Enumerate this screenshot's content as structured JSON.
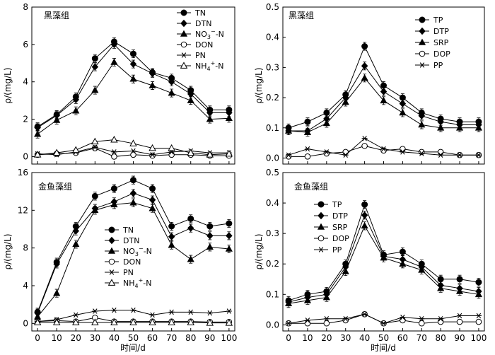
{
  "figure": {
    "xlabel_bottom": "时间/d"
  },
  "chart_data": [
    {
      "type": "line",
      "title": "黑藻组",
      "xlabel": "",
      "ylabel": "ρ/(mg/L)",
      "x": [
        0,
        10,
        20,
        30,
        40,
        50,
        60,
        70,
        80,
        90,
        100
      ],
      "xlim": [
        -3,
        103
      ],
      "ylim": [
        -0.4,
        8
      ],
      "yticks": [
        0,
        2,
        4,
        6,
        8
      ],
      "xticks": [],
      "error_bars": true,
      "legend_position": "top-right",
      "series": [
        {
          "name": "TN",
          "marker": "circle-filled",
          "values": [
            1.6,
            2.25,
            3.2,
            5.25,
            6.15,
            5.5,
            4.5,
            4.2,
            3.55,
            2.5,
            2.5
          ]
        },
        {
          "name": "DTN",
          "marker": "diamond-filled",
          "values": [
            1.55,
            2.2,
            3.05,
            4.8,
            6.0,
            4.95,
            4.45,
            4.0,
            3.35,
            2.35,
            2.35
          ]
        },
        {
          "name": "NO3−-N",
          "marker": "triangle-filled",
          "values": [
            1.2,
            1.95,
            2.45,
            3.55,
            5.05,
            4.15,
            3.8,
            3.4,
            3.0,
            2.0,
            2.05
          ]
        },
        {
          "name": "DON",
          "marker": "circle-open",
          "values": [
            0.1,
            0.15,
            0.2,
            0.45,
            0.0,
            0.1,
            0.05,
            0.1,
            0.1,
            0.05,
            0.05
          ]
        },
        {
          "name": "PN",
          "marker": "asterisk",
          "values": [
            0.15,
            0.1,
            0.25,
            0.5,
            0.25,
            0.3,
            0.1,
            0.25,
            0.3,
            0.2,
            0.2
          ]
        },
        {
          "name": "NH4+-N",
          "marker": "triangle-open",
          "values": [
            0.1,
            0.2,
            0.35,
            0.8,
            0.9,
            0.7,
            0.45,
            0.45,
            0.2,
            0.1,
            0.15
          ]
        }
      ],
      "legend": [
        {
          "pre": "TN"
        },
        {
          "pre": "DTN"
        },
        {
          "pre": "NO",
          "sub": "3",
          "sup": "−",
          "post": "-N"
        },
        {
          "pre": "DON"
        },
        {
          "pre": "PN"
        },
        {
          "pre": "NH",
          "sub": "4",
          "sup": "+",
          "post": "-N"
        }
      ]
    },
    {
      "type": "line",
      "title": "黑藻组",
      "xlabel": "",
      "ylabel": "ρ/(mg/L)",
      "x": [
        0,
        10,
        20,
        30,
        40,
        50,
        60,
        70,
        80,
        90,
        100
      ],
      "xlim": [
        -3,
        103
      ],
      "ylim": [
        -0.02,
        0.5
      ],
      "yticks": [
        0.0,
        0.1,
        0.2,
        0.3,
        0.4,
        0.5
      ],
      "xticks": [],
      "error_bars": true,
      "legend_position": "top-right",
      "series": [
        {
          "name": "TP",
          "marker": "circle-filled",
          "values": [
            0.1,
            0.12,
            0.15,
            0.21,
            0.37,
            0.24,
            0.2,
            0.15,
            0.13,
            0.12,
            0.12
          ]
        },
        {
          "name": "DTP",
          "marker": "diamond-filled",
          "values": [
            0.09,
            0.09,
            0.13,
            0.2,
            0.305,
            0.22,
            0.18,
            0.14,
            0.12,
            0.11,
            0.11
          ]
        },
        {
          "name": "SRP",
          "marker": "triangle-filled",
          "values": [
            0.09,
            0.085,
            0.115,
            0.185,
            0.265,
            0.19,
            0.15,
            0.11,
            0.1,
            0.1,
            0.1
          ]
        },
        {
          "name": "DOP",
          "marker": "circle-open",
          "values": [
            0.005,
            0.005,
            0.015,
            0.02,
            0.04,
            0.025,
            0.03,
            0.02,
            0.02,
            0.01,
            0.01
          ]
        },
        {
          "name": "PP",
          "marker": "asterisk",
          "values": [
            0.01,
            0.03,
            0.02,
            0.01,
            0.065,
            0.03,
            0.02,
            0.015,
            0.01,
            0.01,
            0.01
          ]
        }
      ],
      "legend": [
        {
          "pre": "TP"
        },
        {
          "pre": "DTP"
        },
        {
          "pre": "SRP"
        },
        {
          "pre": "DOP"
        },
        {
          "pre": "PP"
        }
      ]
    },
    {
      "type": "line",
      "title": "金鱼藻组",
      "xlabel": "时间/d",
      "ylabel": "ρ/(mg/L)",
      "x": [
        0,
        10,
        20,
        30,
        40,
        50,
        60,
        70,
        80,
        90,
        100
      ],
      "xlim": [
        -3,
        103
      ],
      "ylim": [
        -0.8,
        16
      ],
      "yticks": [
        0,
        4,
        8,
        12,
        16
      ],
      "xticks": [
        0,
        10,
        20,
        30,
        40,
        50,
        60,
        70,
        80,
        90,
        100
      ],
      "error_bars": true,
      "legend_position": "center-left",
      "series": [
        {
          "name": "TN",
          "marker": "circle-filled",
          "values": [
            1.2,
            6.5,
            10.3,
            13.5,
            14.3,
            15.2,
            14.3,
            10.3,
            11.1,
            10.3,
            10.6
          ]
        },
        {
          "name": "DTN",
          "marker": "diamond-filled",
          "values": [
            1.1,
            6.3,
            9.8,
            12.2,
            12.9,
            13.8,
            13.1,
            9.2,
            10.1,
            9.3,
            9.3
          ]
        },
        {
          "name": "NO3−-N",
          "marker": "triangle-filled",
          "values": [
            0.7,
            3.2,
            8.4,
            12.0,
            12.6,
            12.8,
            12.2,
            8.3,
            6.8,
            8.1,
            7.9
          ]
        },
        {
          "name": "DON",
          "marker": "circle-open",
          "values": [
            0.2,
            0.3,
            0.2,
            0.6,
            0.2,
            0.2,
            0.2,
            0.2,
            0.2,
            0.15,
            0.15
          ]
        },
        {
          "name": "PN",
          "marker": "asterisk",
          "values": [
            0.2,
            0.4,
            0.9,
            1.3,
            1.4,
            1.4,
            0.9,
            1.2,
            1.2,
            1.1,
            1.3
          ]
        },
        {
          "name": "NH4+-N",
          "marker": "triangle-open",
          "values": [
            0.1,
            0.1,
            0.1,
            0.1,
            0.1,
            0.1,
            0.1,
            0.1,
            0.1,
            0.05,
            0.05
          ]
        }
      ],
      "legend": [
        {
          "pre": "TN"
        },
        {
          "pre": "DTN"
        },
        {
          "pre": "NO",
          "sub": "3",
          "sup": "−",
          "post": "-N"
        },
        {
          "pre": "DON"
        },
        {
          "pre": "PN"
        },
        {
          "pre": "NH",
          "sub": "4",
          "sup": "+",
          "post": "-N"
        }
      ]
    },
    {
      "type": "line",
      "title": "金鱼藻组",
      "xlabel": "时间/d",
      "ylabel": "ρ/(mg/L)",
      "x": [
        0,
        10,
        20,
        30,
        40,
        50,
        60,
        70,
        80,
        90,
        100
      ],
      "xlim": [
        -3,
        103
      ],
      "ylim": [
        -0.02,
        0.5
      ],
      "yticks": [
        0.0,
        0.1,
        0.2,
        0.3,
        0.4,
        0.5
      ],
      "xticks": [
        0,
        10,
        20,
        30,
        40,
        50,
        60,
        70,
        80,
        90,
        100
      ],
      "error_bars": true,
      "legend_position": "center-left",
      "series": [
        {
          "name": "TP",
          "marker": "circle-filled",
          "values": [
            0.08,
            0.1,
            0.11,
            0.2,
            0.395,
            0.23,
            0.24,
            0.2,
            0.15,
            0.15,
            0.14
          ]
        },
        {
          "name": "DTP",
          "marker": "diamond-filled",
          "values": [
            0.075,
            0.09,
            0.1,
            0.19,
            0.36,
            0.225,
            0.215,
            0.19,
            0.13,
            0.12,
            0.11
          ]
        },
        {
          "name": "SRP",
          "marker": "triangle-filled",
          "values": [
            0.07,
            0.08,
            0.09,
            0.175,
            0.325,
            0.22,
            0.2,
            0.18,
            0.12,
            0.11,
            0.1
          ]
        },
        {
          "name": "DOP",
          "marker": "circle-open",
          "values": [
            0.005,
            0.005,
            0.005,
            0.015,
            0.035,
            0.005,
            0.015,
            0.005,
            0.01,
            0.01,
            0.01
          ]
        },
        {
          "name": "PP",
          "marker": "asterisk",
          "values": [
            0.005,
            0.015,
            0.02,
            0.02,
            0.035,
            0.005,
            0.025,
            0.02,
            0.02,
            0.03,
            0.03
          ]
        }
      ],
      "legend": [
        {
          "pre": "TP"
        },
        {
          "pre": "DTP"
        },
        {
          "pre": "SRP"
        },
        {
          "pre": "DOP"
        },
        {
          "pre": "PP"
        }
      ]
    }
  ]
}
